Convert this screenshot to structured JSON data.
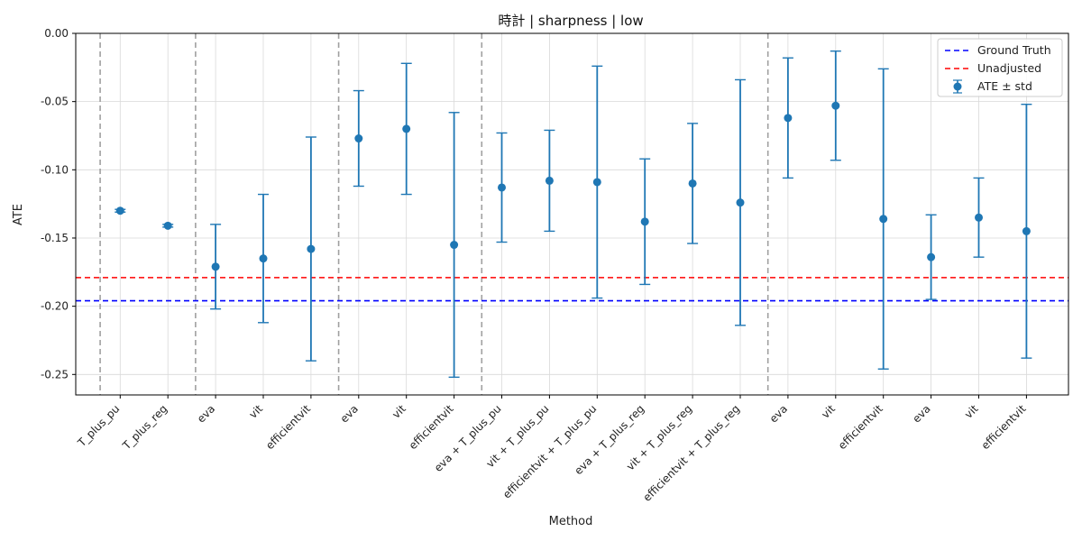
{
  "chart_data": {
    "type": "scatter",
    "title": "時計 | sharpness | low",
    "xlabel": "Method",
    "ylabel": "ATE",
    "ylim": [
      -0.265,
      0.0
    ],
    "yticks": [
      0.0,
      -0.05,
      -0.1,
      -0.15,
      -0.2,
      -0.25
    ],
    "ytick_labels": [
      "0.00",
      "-0.05",
      "-0.10",
      "-0.15",
      "-0.20",
      "-0.25"
    ],
    "grid": true,
    "legend_position": "top-right",
    "categories": [
      "T_plus_pu",
      "T_plus_reg",
      "eva",
      "vit",
      "efficientvit",
      "eva",
      "vit",
      "efficientvit",
      "eva + T_plus_pu",
      "vit + T_plus_pu",
      "efficientvit + T_plus_pu",
      "eva + T_plus_reg",
      "vit + T_plus_reg",
      "efficientvit + T_plus_reg",
      "eva",
      "vit",
      "efficientvit",
      "eva",
      "vit",
      "efficientvit"
    ],
    "series": [
      {
        "name": "ATE ± std",
        "color": "#1f77b4",
        "values": [
          -0.13,
          -0.141,
          -0.171,
          -0.165,
          -0.158,
          -0.077,
          -0.07,
          -0.155,
          -0.113,
          -0.108,
          -0.109,
          -0.138,
          -0.11,
          -0.124,
          -0.062,
          -0.053,
          -0.136,
          -0.164,
          -0.135,
          -0.145
        ],
        "std": [
          0.001,
          0.001,
          0.031,
          0.047,
          0.082,
          0.035,
          0.048,
          0.097,
          0.04,
          0.037,
          0.085,
          0.046,
          0.044,
          0.09,
          0.044,
          0.04,
          0.11,
          0.031,
          0.029,
          0.093
        ]
      }
    ],
    "reference_lines": [
      {
        "name": "Ground Truth",
        "value": -0.196,
        "color": "#0000ff",
        "style": "dashed"
      },
      {
        "name": "Unadjusted",
        "value": -0.179,
        "color": "#ff0000",
        "style": "dashed"
      }
    ],
    "group_separators_after_index": [
      -1,
      1,
      4,
      7,
      13
    ],
    "separator_color": "#a0a0a0"
  }
}
